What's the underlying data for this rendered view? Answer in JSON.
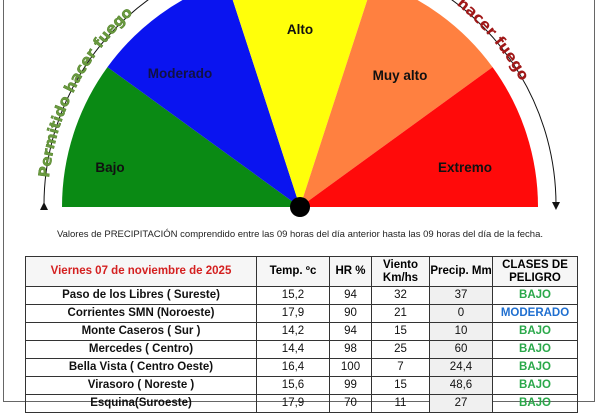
{
  "gauge": {
    "sectors": [
      {
        "label": "Bajo",
        "color": "#0a8a14"
      },
      {
        "label": "Moderado",
        "color": "#0a14f0"
      },
      {
        "label": "Alto",
        "color": "#ffff0a"
      },
      {
        "label": "Muy alto",
        "color": "#ff8040"
      },
      {
        "label": "Extremo",
        "color": "#ff0a0a"
      }
    ],
    "left_arc_label": "Permitido hacer fuego",
    "right_arc_label": "do hacer fuego",
    "left_arc_color": "#6a9a40",
    "right_arc_color": "#a01818"
  },
  "note": "Valores de PRECIPITACIÓN comprendido entre las 09 horas del día anterior hasta las 09 horas del día de la fecha.",
  "table": {
    "headers": [
      "Viernes 07 de noviembre de 2025",
      "Temp. ºc",
      "HR %",
      "Viento Km/hs",
      "Precip. Mm",
      "CLASES DE PELIGRO"
    ],
    "rows": [
      {
        "station": "Paso de los Libres ( Sureste)",
        "temp": "15,2",
        "hr": "94",
        "wind": "32",
        "precip": "37",
        "class": "BAJO"
      },
      {
        "station": "Corrientes SMN (Noroeste)",
        "temp": "17,9",
        "hr": "90",
        "wind": "21",
        "precip": "0",
        "class": "MODERADO"
      },
      {
        "station": "Monte Caseros ( Sur )",
        "temp": "14,2",
        "hr": "94",
        "wind": "15",
        "precip": "10",
        "class": "BAJO"
      },
      {
        "station": "Mercedes ( Centro)",
        "temp": "14,4",
        "hr": "98",
        "wind": "25",
        "precip": "60",
        "class": "BAJO"
      },
      {
        "station": "Bella Vista ( Centro Oeste)",
        "temp": "16,4",
        "hr": "100",
        "wind": "7",
        "precip": "24,4",
        "class": "BAJO"
      },
      {
        "station": "Virasoro ( Noreste )",
        "temp": "15,6",
        "hr": "99",
        "wind": "15",
        "precip": "48,6",
        "class": "BAJO"
      },
      {
        "station": "Esquina(Suroeste)",
        "temp": "17,9",
        "hr": "70",
        "wind": "11",
        "precip": "27",
        "class": "BAJO"
      }
    ]
  }
}
